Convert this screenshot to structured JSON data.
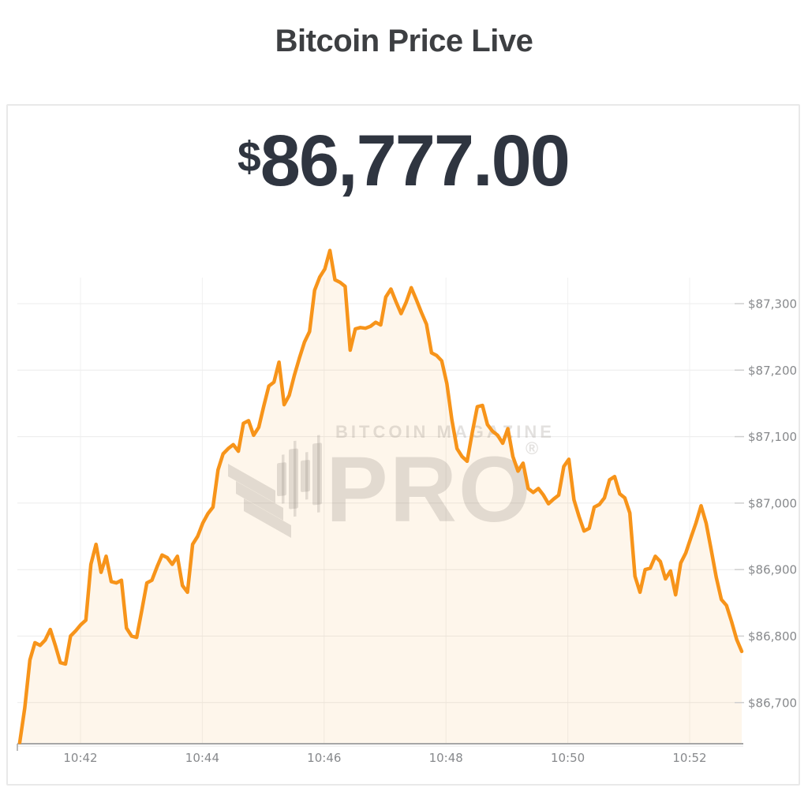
{
  "page_title": "Bitcoin Price Live",
  "price": {
    "currency_symbol": "$",
    "amount": "86,777.00"
  },
  "watermark": {
    "line1": "BITCOIN MAGAZINE",
    "line2": "PRO",
    "registered": "®"
  },
  "colors": {
    "line": "#F7941A",
    "fill": "rgba(247,148,26,0.085)",
    "grid_h": "#ececec",
    "grid_v": "#f1f1f1",
    "tick": "#cfcfcf",
    "axis_line": "#a6a6a6",
    "axis_label": "#87898c",
    "title_text": "#3d3f42",
    "price_text": "#2f3540"
  },
  "chart_data": {
    "type": "area",
    "title": "Bitcoin Price Live",
    "current_price_usd": 86777.0,
    "xlabel": "",
    "ylabel": "",
    "x_start_time": "10:41:00",
    "x_end_time": "10:52:50",
    "sample_interval_seconds": 5,
    "x_tick_labels": [
      "10:42",
      "10:44",
      "10:46",
      "10:48",
      "10:50",
      "10:52"
    ],
    "y_tick_labels": [
      "$87,300",
      "$87,200",
      "$87,100",
      "$87,000",
      "$86,900",
      "$86,800",
      "$86,700"
    ],
    "y_gridline_values": [
      87300,
      87200,
      87100,
      87000,
      86900,
      86800,
      86700
    ],
    "ylim": [
      86638,
      87410
    ],
    "grid": true,
    "legend": "none",
    "prices": [
      86640,
      86692,
      86764,
      86790,
      86786,
      86794,
      86810,
      86786,
      86760,
      86758,
      86800,
      86808,
      86817,
      86824,
      86908,
      86938,
      86896,
      86920,
      86882,
      86880,
      86884,
      86812,
      86800,
      86798,
      86838,
      86880,
      86884,
      86904,
      86922,
      86918,
      86908,
      86920,
      86876,
      86866,
      86938,
      86950,
      86970,
      86984,
      86994,
      87050,
      87074,
      87082,
      87088,
      87078,
      87120,
      87124,
      87102,
      87114,
      87146,
      87176,
      87182,
      87212,
      87148,
      87162,
      87192,
      87218,
      87242,
      87258,
      87320,
      87340,
      87352,
      87380,
      87336,
      87332,
      87326,
      87230,
      87262,
      87264,
      87263,
      87266,
      87272,
      87268,
      87310,
      87322,
      87303,
      87285,
      87302,
      87324,
      87306,
      87287,
      87269,
      87226,
      87222,
      87214,
      87180,
      87125,
      87082,
      87070,
      87063,
      87106,
      87145,
      87147,
      87118,
      87108,
      87102,
      87090,
      87112,
      87070,
      87048,
      87060,
      87022,
      87016,
      87022,
      87012,
      86999,
      87006,
      87012,
      87055,
      87066,
      87005,
      86980,
      86958,
      86962,
      86994,
      86998,
      87008,
      87035,
      87040,
      87014,
      87008,
      86985,
      86890,
      86866,
      86900,
      86902,
      86920,
      86912,
      86886,
      86898,
      86862,
      86910,
      86925,
      86948,
      86970,
      86996,
      86970,
      86930,
      86888,
      86855,
      86846,
      86822,
      86795,
      86777
    ]
  }
}
